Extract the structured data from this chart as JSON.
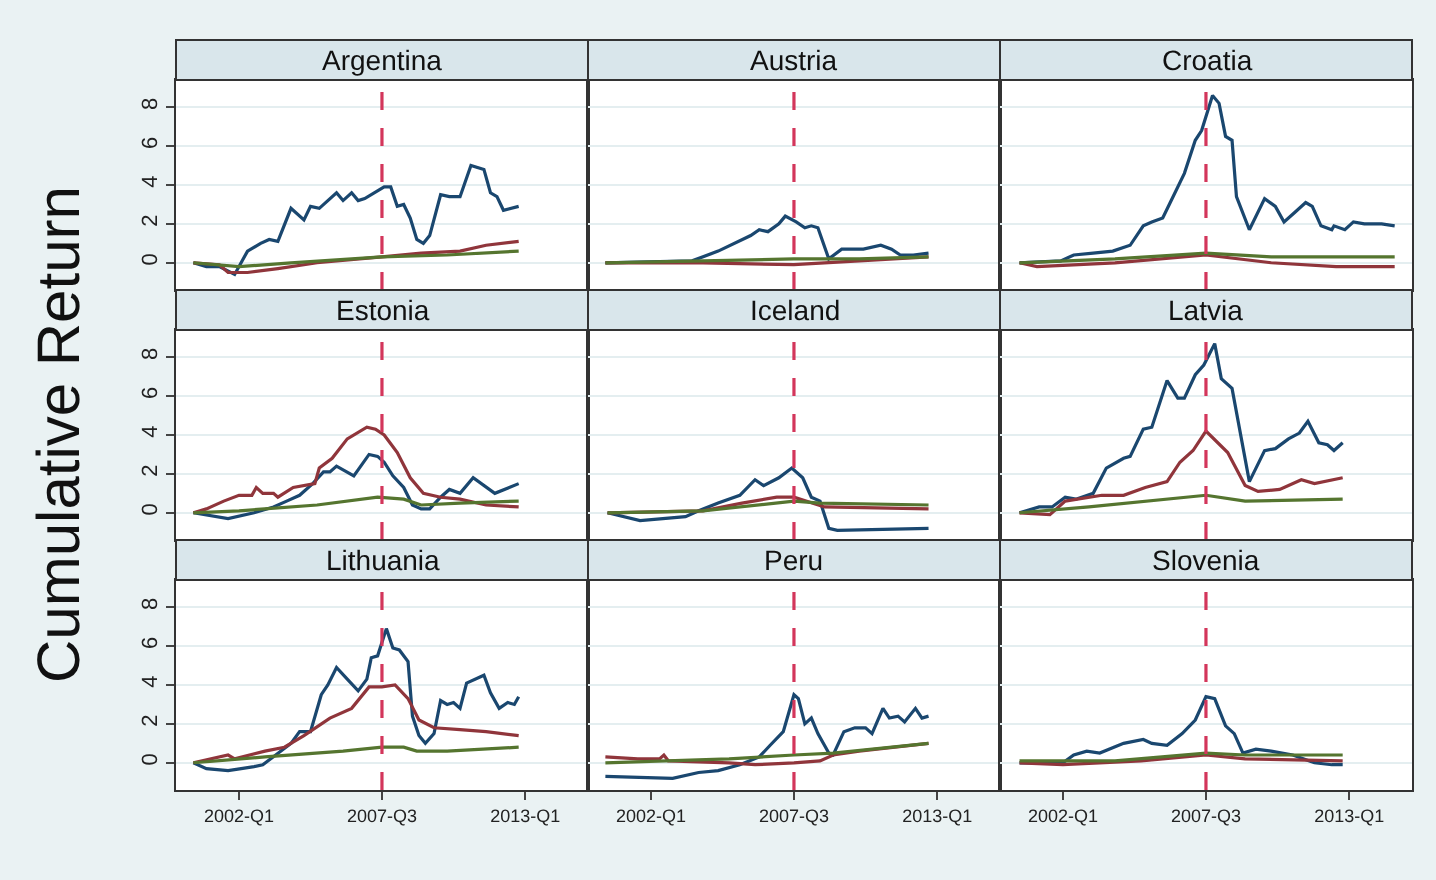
{
  "chart_data": [
    {
      "type": "line",
      "title": "Argentina",
      "xlim": [
        "1999-08",
        "2015-06"
      ],
      "ylim": [
        -1.4,
        9.4
      ],
      "yticks": [
        0,
        2,
        4,
        6,
        8
      ],
      "tick_labels": "y",
      "grid": "y",
      "ref_lines": [
        {
          "axis": "x",
          "value": "2007-07",
          "color": "#d3365b",
          "line_style": "dashed"
        }
      ],
      "series": [
        {
          "color": "#1a476f",
          "x": [
            "2000-04",
            "2000-10",
            "2001-04",
            "2001-11",
            "2002-05",
            "2002-11",
            "2003-03",
            "2003-07",
            "2004-01",
            "2004-07",
            "2004-10",
            "2005-02",
            "2005-10",
            "2006-01",
            "2006-05",
            "2006-08",
            "2006-11",
            "2007-08",
            "2007-11",
            "2008-02",
            "2008-05",
            "2008-08",
            "2008-11",
            "2009-02",
            "2009-05",
            "2009-10",
            "2010-02",
            "2010-07",
            "2010-12",
            "2011-06",
            "2011-09",
            "2011-12",
            "2012-03",
            "2012-10"
          ],
          "values": [
            0,
            -0.2,
            -0.2,
            -0.6,
            0.6,
            1.0,
            1.2,
            1.1,
            2.8,
            2.2,
            2.9,
            2.8,
            3.6,
            3.2,
            3.6,
            3.2,
            3.3,
            3.9,
            3.9,
            2.9,
            3.0,
            2.3,
            1.2,
            1.0,
            1.4,
            3.5,
            3.4,
            3.4,
            5.0,
            4.8,
            3.6,
            3.4,
            2.7,
            2.9
          ]
        },
        {
          "color": "#90353b",
          "x": [
            "2000-04",
            "2001-04",
            "2001-08",
            "2002-05",
            "2003-07",
            "2005-01",
            "2007-07",
            "2009-01",
            "2010-07",
            "2011-07",
            "2012-10"
          ],
          "values": [
            0,
            -0.1,
            -0.5,
            -0.5,
            -0.3,
            0,
            0.3,
            0.5,
            0.6,
            0.9,
            1.1
          ]
        },
        {
          "color": "#55752f",
          "x": [
            "2000-04",
            "2002-01",
            "2004-01",
            "2007-07",
            "2010-01",
            "2012-10"
          ],
          "values": [
            0,
            -0.2,
            0,
            0.3,
            0.4,
            0.6
          ]
        }
      ]
    },
    {
      "type": "line",
      "title": "Austria",
      "xlim": [
        "1999-08",
        "2015-06"
      ],
      "ylim": [
        -1.4,
        9.4
      ],
      "yticks": [
        0,
        2,
        4,
        6,
        8
      ],
      "tick_labels": false,
      "grid": "y",
      "ref_lines": [
        {
          "axis": "x",
          "value": "2007-07",
          "color": "#d3365b",
          "line_style": "dashed"
        }
      ],
      "series": [
        {
          "color": "#1a476f",
          "x": [
            "2000-04",
            "2003-08",
            "2004-08",
            "2005-11",
            "2006-03",
            "2006-07",
            "2006-12",
            "2007-03",
            "2007-08",
            "2007-12",
            "2008-03",
            "2008-06",
            "2008-11",
            "2009-05",
            "2010-03",
            "2010-11",
            "2011-04",
            "2011-08",
            "2012-02",
            "2012-09"
          ],
          "values": [
            0,
            0.1,
            0.6,
            1.4,
            1.7,
            1.6,
            2.0,
            2.4,
            2.1,
            1.8,
            1.9,
            1.8,
            0.2,
            0.7,
            0.7,
            0.9,
            0.7,
            0.4,
            0.4,
            0.5
          ]
        },
        {
          "color": "#90353b",
          "x": [
            "2000-04",
            "2004-01",
            "2007-07",
            "2010-01",
            "2012-09"
          ],
          "values": [
            0,
            0,
            -0.1,
            0.1,
            0.3
          ]
        },
        {
          "color": "#55752f",
          "x": [
            "2000-04",
            "2004-01",
            "2007-07",
            "2010-01",
            "2012-09"
          ],
          "values": [
            0,
            0.1,
            0.2,
            0.2,
            0.3
          ]
        }
      ]
    },
    {
      "type": "line",
      "title": "Croatia",
      "xlim": [
        "1999-08",
        "2015-06"
      ],
      "ylim": [
        -1.4,
        9.4
      ],
      "yticks": [
        0,
        2,
        4,
        6,
        8
      ],
      "tick_labels": false,
      "grid": "y",
      "ref_lines": [
        {
          "axis": "x",
          "value": "2007-07",
          "color": "#d3365b",
          "line_style": "dashed"
        }
      ],
      "series": [
        {
          "color": "#1a476f",
          "x": [
            "2000-05",
            "2001-12",
            "2002-06",
            "2003-03",
            "2003-12",
            "2004-08",
            "2005-02",
            "2005-06",
            "2005-11",
            "2006-02",
            "2006-09",
            "2007-02",
            "2007-05",
            "2007-10",
            "2008-01",
            "2008-04",
            "2008-07",
            "2008-09",
            "2009-03",
            "2009-10",
            "2010-03",
            "2010-07",
            "2010-12",
            "2011-05",
            "2011-08",
            "2011-12",
            "2012-05",
            "2012-06",
            "2012-11",
            "2013-03",
            "2013-08",
            "2014-04",
            "2014-10"
          ],
          "values": [
            0,
            0.1,
            0.4,
            0.5,
            0.6,
            0.9,
            1.9,
            2.1,
            2.3,
            3.0,
            4.6,
            6.3,
            6.8,
            8.6,
            8.2,
            6.5,
            6.3,
            3.4,
            1.7,
            3.3,
            2.9,
            2.1,
            2.6,
            3.1,
            2.9,
            1.9,
            1.7,
            1.9,
            1.7,
            2.1,
            2.0,
            2.0,
            1.9
          ]
        },
        {
          "color": "#90353b",
          "x": [
            "2000-05",
            "2001-01",
            "2004-01",
            "2007-07",
            "2010-01",
            "2012-07",
            "2014-10"
          ],
          "values": [
            0,
            -0.2,
            0,
            0.4,
            0,
            -0.2,
            -0.2
          ]
        },
        {
          "color": "#55752f",
          "x": [
            "2000-05",
            "2004-01",
            "2007-07",
            "2010-01",
            "2014-10"
          ],
          "values": [
            0,
            0.2,
            0.5,
            0.3,
            0.3
          ]
        }
      ]
    },
    {
      "type": "line",
      "title": "Estonia",
      "ylabel": "Cumulative Return",
      "xlim": [
        "1999-08",
        "2015-06"
      ],
      "ylim": [
        -1.4,
        9.4
      ],
      "yticks": [
        0,
        2,
        4,
        6,
        8
      ],
      "tick_labels": "y",
      "grid": "y",
      "ref_lines": [
        {
          "axis": "x",
          "value": "2007-07",
          "color": "#d3365b",
          "line_style": "dashed"
        }
      ],
      "series": [
        {
          "color": "#1a476f",
          "x": [
            "2000-04",
            "2001-08",
            "2002-08",
            "2003-05",
            "2003-11",
            "2004-05",
            "2004-11",
            "2005-04",
            "2005-07",
            "2005-10",
            "2006-06",
            "2007-01",
            "2007-05",
            "2007-08",
            "2007-12",
            "2008-05",
            "2008-09",
            "2009-01",
            "2009-05",
            "2009-10",
            "2010-02",
            "2010-07",
            "2011-01",
            "2011-11",
            "2012-10"
          ],
          "values": [
            0,
            -0.3,
            0,
            0.3,
            0.6,
            0.9,
            1.5,
            2.1,
            2.1,
            2.4,
            1.9,
            3.0,
            2.9,
            2.6,
            1.9,
            1.3,
            0.4,
            0.2,
            0.2,
            0.8,
            1.2,
            1.0,
            1.8,
            1.0,
            1.5
          ]
        },
        {
          "color": "#90353b",
          "x": [
            "2000-04",
            "2000-10",
            "2001-06",
            "2002-01",
            "2002-07",
            "2002-09",
            "2002-12",
            "2003-05",
            "2003-07",
            "2004-02",
            "2004-12",
            "2005-02",
            "2005-08",
            "2006-03",
            "2006-12",
            "2007-04",
            "2007-08",
            "2008-02",
            "2008-08",
            "2009-02",
            "2009-10",
            "2010-07",
            "2011-07",
            "2012-10"
          ],
          "values": [
            0,
            0.2,
            0.6,
            0.9,
            0.9,
            1.3,
            1.0,
            1.0,
            0.8,
            1.3,
            1.5,
            2.3,
            2.8,
            3.8,
            4.4,
            4.3,
            4.0,
            3.1,
            1.8,
            1.0,
            0.8,
            0.7,
            0.4,
            0.3
          ]
        },
        {
          "color": "#55752f",
          "x": [
            "2000-04",
            "2002-01",
            "2005-01",
            "2007-05",
            "2008-05",
            "2009-01",
            "2010-07",
            "2012-10"
          ],
          "values": [
            0,
            0.1,
            0.4,
            0.8,
            0.7,
            0.4,
            0.5,
            0.6
          ]
        }
      ]
    },
    {
      "type": "line",
      "title": "Iceland",
      "xlim": [
        "1999-08",
        "2015-06"
      ],
      "ylim": [
        -1.4,
        9.4
      ],
      "yticks": [
        0,
        2,
        4,
        6,
        8
      ],
      "tick_labels": false,
      "grid": "y",
      "ref_lines": [
        {
          "axis": "x",
          "value": "2007-07",
          "color": "#d3365b",
          "line_style": "dashed"
        }
      ],
      "series": [
        {
          "color": "#1a476f",
          "x": [
            "2000-05",
            "2001-08",
            "2003-05",
            "2003-11",
            "2004-08",
            "2005-06",
            "2006-01",
            "2006-05",
            "2006-12",
            "2007-06",
            "2007-11",
            "2008-03",
            "2008-07",
            "2008-11",
            "2009-03",
            "2012-09"
          ],
          "values": [
            0,
            -0.4,
            -0.2,
            0.1,
            0.5,
            0.9,
            1.7,
            1.4,
            1.8,
            2.3,
            1.8,
            0.8,
            0.6,
            -0.8,
            -0.9,
            -0.8
          ]
        },
        {
          "color": "#90353b",
          "x": [
            "2000-05",
            "2004-01",
            "2005-07",
            "2006-11",
            "2007-07",
            "2008-09",
            "2012-09"
          ],
          "values": [
            0,
            0.1,
            0.5,
            0.8,
            0.8,
            0.3,
            0.2
          ]
        },
        {
          "color": "#55752f",
          "x": [
            "2000-05",
            "2004-01",
            "2007-07",
            "2008-07",
            "2012-09"
          ],
          "values": [
            0,
            0.1,
            0.6,
            0.5,
            0.4
          ]
        }
      ]
    },
    {
      "type": "line",
      "title": "Latvia",
      "xlim": [
        "1999-08",
        "2015-06"
      ],
      "ylim": [
        -1.4,
        9.4
      ],
      "yticks": [
        0,
        2,
        4,
        6,
        8
      ],
      "tick_labels": false,
      "grid": "y",
      "ref_lines": [
        {
          "axis": "x",
          "value": "2007-07",
          "color": "#d3365b",
          "line_style": "dashed"
        }
      ],
      "series": [
        {
          "color": "#1a476f",
          "x": [
            "2000-05",
            "2001-02",
            "2001-08",
            "2002-02",
            "2002-07",
            "2003-03",
            "2003-09",
            "2004-05",
            "2004-08",
            "2005-02",
            "2005-06",
            "2006-01",
            "2006-06",
            "2006-09",
            "2007-02",
            "2007-06",
            "2007-11",
            "2008-02",
            "2008-07",
            "2009-03",
            "2009-10",
            "2010-03",
            "2010-09",
            "2011-02",
            "2011-06",
            "2011-11",
            "2012-03",
            "2012-06",
            "2012-10"
          ],
          "values": [
            0,
            0.3,
            0.3,
            0.8,
            0.7,
            1.0,
            2.3,
            2.8,
            2.9,
            4.3,
            4.4,
            6.8,
            5.9,
            5.9,
            7.1,
            7.6,
            8.7,
            6.9,
            6.4,
            1.6,
            3.2,
            3.3,
            3.8,
            4.1,
            4.7,
            3.6,
            3.5,
            3.2,
            3.6
          ]
        },
        {
          "color": "#90353b",
          "x": [
            "2000-05",
            "2001-07",
            "2002-02",
            "2003-07",
            "2004-05",
            "2005-03",
            "2006-01",
            "2006-07",
            "2007-01",
            "2007-07",
            "2008-05",
            "2009-01",
            "2009-07",
            "2010-05",
            "2011-03",
            "2011-09",
            "2012-10"
          ],
          "values": [
            0,
            -0.1,
            0.6,
            0.9,
            0.9,
            1.3,
            1.6,
            2.6,
            3.2,
            4.2,
            3.1,
            1.4,
            1.1,
            1.2,
            1.7,
            1.5,
            1.8
          ]
        },
        {
          "color": "#55752f",
          "x": [
            "2000-05",
            "2003-01",
            "2007-07",
            "2009-01",
            "2012-10"
          ],
          "values": [
            0,
            0.3,
            0.9,
            0.6,
            0.7
          ]
        }
      ]
    },
    {
      "type": "line",
      "title": "Lithuania",
      "xlim": [
        "1999-08",
        "2015-06"
      ],
      "ylim": [
        -1.4,
        9.4
      ],
      "yticks": [
        0,
        2,
        4,
        6,
        8
      ],
      "xticks": [
        {
          "value": "2002-01",
          "label": "2002-Q1"
        },
        {
          "value": "2007-07",
          "label": "2007-Q3"
        },
        {
          "value": "2013-01",
          "label": "2013-Q1"
        }
      ],
      "grid": "y",
      "ref_lines": [
        {
          "axis": "x",
          "value": "2007-07",
          "color": "#d3365b",
          "line_style": "dashed"
        }
      ],
      "series": [
        {
          "color": "#1a476f",
          "x": [
            "2000-04",
            "2000-10",
            "2001-08",
            "2002-02",
            "2002-08",
            "2002-12",
            "2003-06",
            "2004-01",
            "2004-05",
            "2004-10",
            "2005-03",
            "2005-06",
            "2005-10",
            "2006-03",
            "2006-08",
            "2006-12",
            "2007-02",
            "2007-05",
            "2007-09",
            "2007-12",
            "2008-03",
            "2008-07",
            "2008-09",
            "2008-12",
            "2009-03",
            "2009-07",
            "2009-10",
            "2010-01",
            "2010-04",
            "2010-07",
            "2010-10",
            "2011-06",
            "2011-09",
            "2012-01",
            "2012-05",
            "2012-08",
            "2012-10"
          ],
          "values": [
            0,
            -0.3,
            -0.4,
            -0.3,
            -0.2,
            -0.1,
            0.4,
            1.0,
            1.6,
            1.6,
            3.5,
            4.0,
            4.9,
            4.3,
            3.7,
            4.3,
            5.4,
            5.5,
            6.9,
            5.9,
            5.8,
            5.2,
            2.4,
            1.4,
            1.0,
            1.5,
            3.2,
            3.0,
            3.1,
            2.8,
            4.1,
            4.5,
            3.6,
            2.8,
            3.1,
            3.0,
            3.4
          ]
        },
        {
          "color": "#90353b",
          "x": [
            "2000-04",
            "2001-08",
            "2001-11",
            "2003-01",
            "2003-10",
            "2004-07",
            "2005-07",
            "2006-05",
            "2007-01",
            "2007-07",
            "2008-01",
            "2008-07",
            "2008-12",
            "2009-07",
            "2010-07",
            "2011-07",
            "2012-10"
          ],
          "values": [
            0,
            0.4,
            0.2,
            0.6,
            0.8,
            1.4,
            2.3,
            2.8,
            3.9,
            3.9,
            4.0,
            3.3,
            2.2,
            1.8,
            1.7,
            1.6,
            1.4
          ]
        },
        {
          "color": "#55752f",
          "x": [
            "2000-04",
            "2003-01",
            "2006-01",
            "2007-07",
            "2008-05",
            "2008-11",
            "2010-01",
            "2012-10"
          ],
          "values": [
            0,
            0.3,
            0.6,
            0.8,
            0.8,
            0.6,
            0.6,
            0.8
          ]
        }
      ]
    },
    {
      "type": "line",
      "title": "Peru",
      "xlim": [
        "1999-08",
        "2015-06"
      ],
      "ylim": [
        -1.4,
        9.4
      ],
      "yticks": [
        0,
        2,
        4,
        6,
        8
      ],
      "xticks": [
        {
          "value": "2002-01",
          "label": "2002-Q1"
        },
        {
          "value": "2007-07",
          "label": "2007-Q3"
        },
        {
          "value": "2013-01",
          "label": "2013-Q1"
        }
      ],
      "tick_labels": "x",
      "grid": "y",
      "ref_lines": [
        {
          "axis": "x",
          "value": "2007-07",
          "color": "#d3365b",
          "line_style": "dashed"
        }
      ],
      "series": [
        {
          "color": "#1a476f",
          "x": [
            "2000-04",
            "2002-11",
            "2003-11",
            "2004-08",
            "2005-06",
            "2006-03",
            "2006-08",
            "2007-02",
            "2007-07",
            "2007-09",
            "2007-12",
            "2008-03",
            "2008-06",
            "2008-11",
            "2009-01",
            "2009-06",
            "2009-11",
            "2010-04",
            "2010-07",
            "2010-12",
            "2011-03",
            "2011-07",
            "2011-10",
            "2012-03",
            "2012-06",
            "2012-09"
          ],
          "values": [
            -0.7,
            -0.8,
            -0.5,
            -0.4,
            -0.1,
            0.3,
            0.9,
            1.6,
            3.5,
            3.3,
            2.0,
            2.3,
            1.5,
            0.5,
            0.4,
            1.6,
            1.8,
            1.8,
            1.5,
            2.8,
            2.3,
            2.4,
            2.1,
            2.8,
            2.3,
            2.4
          ]
        },
        {
          "color": "#90353b",
          "x": [
            "2000-04",
            "2001-07",
            "2002-05",
            "2002-07",
            "2002-09",
            "2005-01",
            "2006-01",
            "2007-07",
            "2008-07",
            "2009-01",
            "2010-01",
            "2012-09"
          ],
          "values": [
            0.3,
            0.2,
            0.2,
            0.4,
            0.1,
            0,
            -0.1,
            0,
            0.1,
            0.4,
            0.6,
            1.0
          ]
        },
        {
          "color": "#55752f",
          "x": [
            "2000-04",
            "2005-01",
            "2007-07",
            "2009-01",
            "2012-09"
          ],
          "values": [
            0,
            0.2,
            0.4,
            0.5,
            1.0
          ]
        }
      ]
    },
    {
      "type": "line",
      "title": "Slovenia",
      "xlim": [
        "1999-08",
        "2015-06"
      ],
      "ylim": [
        -1.4,
        9.4
      ],
      "yticks": [
        0,
        2,
        4,
        6,
        8
      ],
      "xticks": [
        {
          "value": "2002-01",
          "label": "2002-Q1"
        },
        {
          "value": "2007-07",
          "label": "2007-Q3"
        },
        {
          "value": "2013-01",
          "label": "2013-Q1"
        }
      ],
      "tick_labels": "x",
      "grid": "y",
      "ref_lines": [
        {
          "axis": "x",
          "value": "2007-07",
          "color": "#d3365b",
          "line_style": "dashed"
        }
      ],
      "series": [
        {
          "color": "#1a476f",
          "x": [
            "2000-05",
            "2002-01",
            "2002-06",
            "2002-12",
            "2003-06",
            "2004-05",
            "2005-02",
            "2005-06",
            "2006-01",
            "2006-08",
            "2007-02",
            "2007-07",
            "2007-11",
            "2008-04",
            "2008-08",
            "2008-12",
            "2009-06",
            "2010-01",
            "2010-11",
            "2011-09",
            "2012-05",
            "2012-10"
          ],
          "values": [
            0,
            0,
            0.4,
            0.6,
            0.5,
            1.0,
            1.2,
            1.0,
            0.9,
            1.5,
            2.2,
            3.4,
            3.3,
            1.9,
            1.5,
            0.5,
            0.7,
            0.6,
            0.4,
            0,
            -0.1,
            -0.1
          ]
        },
        {
          "color": "#90353b",
          "x": [
            "2000-05",
            "2002-01",
            "2005-01",
            "2007-07",
            "2009-01",
            "2012-10"
          ],
          "values": [
            0,
            -0.1,
            0.1,
            0.4,
            0.2,
            0.1
          ]
        },
        {
          "color": "#55752f",
          "x": [
            "2000-05",
            "2004-01",
            "2007-07",
            "2009-01",
            "2012-10"
          ],
          "values": [
            0.1,
            0.1,
            0.5,
            0.4,
            0.4
          ]
        }
      ]
    }
  ]
}
